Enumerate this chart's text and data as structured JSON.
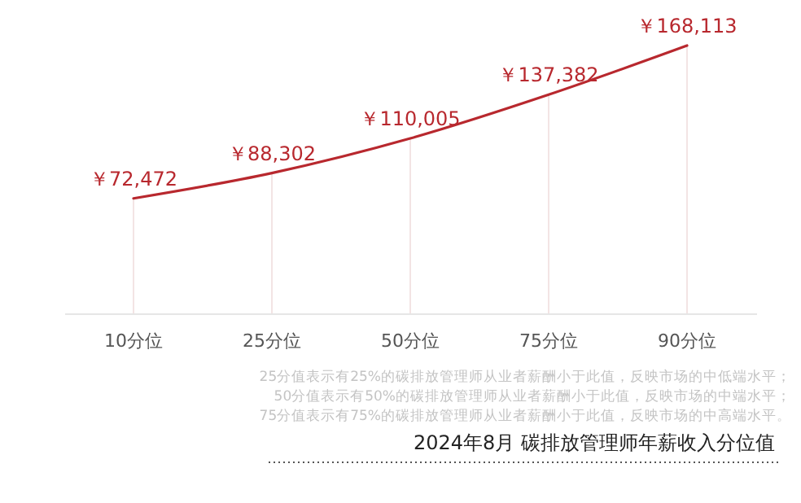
{
  "chart_data": {
    "type": "line",
    "title": "2024年8月 碳排放管理师年薪收入分位值",
    "categories": [
      "10分位",
      "25分位",
      "50分位",
      "75分位",
      "90分位"
    ],
    "values": [
      72472,
      88302,
      110005,
      137382,
      168113
    ],
    "value_labels": [
      "￥72,472",
      "￥88,302",
      "￥110,005",
      "￥137,382",
      "￥168,113"
    ],
    "color": "#b8282e",
    "tick_labels": "x",
    "grid": "x",
    "marker": "none",
    "line_style": "solid",
    "annotations": [
      "25分值表示有25%的碳排放管理师从业者薪酬小于此值，反映市场的中低端水平；",
      "50分值表示有50%的碳排放管理师从业者薪酬小于此值，反映市场的中端水平；",
      "75分值表示有75%的碳排放管理师从业者薪酬小于此值，反映市场的中高端水平。"
    ]
  }
}
